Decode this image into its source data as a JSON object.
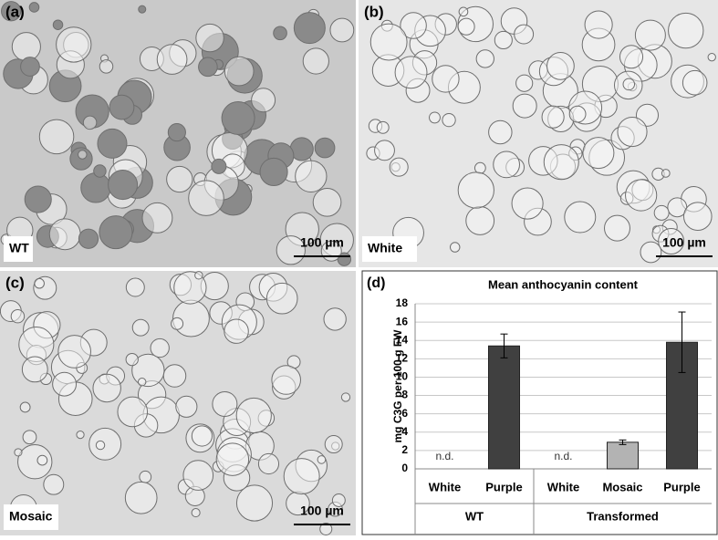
{
  "panels": [
    {
      "label": "(a)",
      "caption": "WT",
      "scale": "100 µm"
    },
    {
      "label": "(b)",
      "caption": "White",
      "scale": "100 µm"
    },
    {
      "label": "(c)",
      "caption": "Mosaic",
      "scale": "100 µm"
    }
  ],
  "chart_data": {
    "type": "bar",
    "label": "(d)",
    "title": "Mean anthocyanin content",
    "y_label": "mg  C3G per 100 g FW",
    "categories": [
      "White",
      "Purple",
      "White",
      "Mosaic",
      "Purple"
    ],
    "groups": [
      {
        "name": "WT",
        "count": 2
      },
      {
        "name": "Transformed",
        "count": 3
      }
    ],
    "values": [
      null,
      13.4,
      null,
      2.9,
      13.8
    ],
    "value_labels": [
      "n.d.",
      null,
      "n.d.",
      null,
      null
    ],
    "errors": [
      null,
      1.3,
      null,
      0.25,
      3.3
    ],
    "colors": [
      "#404040",
      "#404040",
      "#404040",
      "#b3b3b3",
      "#404040"
    ],
    "ylim": [
      0,
      18
    ],
    "yticks": [
      0,
      2,
      4,
      6,
      8,
      10,
      12,
      14,
      16,
      18
    ],
    "grid": true
  }
}
